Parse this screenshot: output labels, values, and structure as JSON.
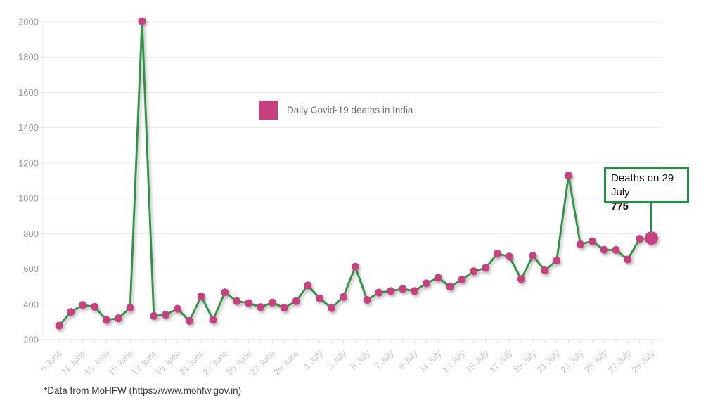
{
  "page": {
    "background_color": "#ffffff"
  },
  "legend": {
    "label": "Daily Covid-19 deaths in India",
    "swatch_color": "#c8417e"
  },
  "annotation": {
    "line1": "Deaths on 29 July",
    "line2": "775"
  },
  "footer": {
    "text": "*Data from MoHFW (https://www.mohfw.gov.in)"
  },
  "chart_data": {
    "type": "line",
    "title": "",
    "xlabel": "",
    "ylabel": "",
    "x": [
      "9 June",
      "10 June",
      "11 June",
      "12 June",
      "13 June",
      "14 June",
      "15 June",
      "16 June",
      "17 June",
      "18 June",
      "19 June",
      "20 June",
      "21 June",
      "22 June",
      "23 June",
      "24 June",
      "25 June",
      "26 June",
      "27 June",
      "28 June",
      "29 June",
      "30 June",
      "1 July",
      "2 July",
      "3 July",
      "4 July",
      "5 July",
      "6 July",
      "7 July",
      "8 July",
      "9 July",
      "10 July",
      "11 July",
      "12 July",
      "13 July",
      "14 July",
      "15 July",
      "16 July",
      "17 July",
      "18 July",
      "19 July",
      "20 July",
      "21 July",
      "22 July",
      "23 July",
      "24 July",
      "25 July",
      "26 July",
      "27 July",
      "28 July",
      "29 July"
    ],
    "series": [
      {
        "name": "Daily Covid-19 deaths in India",
        "values": [
          279,
          357,
          396,
          386,
          311,
          321,
          380,
          2003,
          334,
          341,
          375,
          306,
          445,
          312,
          468,
          418,
          407,
          384,
          410,
          380,
          418,
          507,
          434,
          379,
          442,
          613,
          425,
          467,
          475,
          487,
          475,
          519,
          551,
          500,
          540,
          587,
          606,
          687,
          671,
          543,
          675,
          592,
          648,
          1129,
          740,
          757,
          709,
          708,
          654,
          771,
          775
        ]
      }
    ],
    "x_tick_labels": [
      "9 June",
      "11 June",
      "13 June",
      "15 June",
      "17 June",
      "19 June",
      "21 June",
      "23 June",
      "25 June",
      "27 June",
      "29 June",
      "1 July",
      "3 July",
      "5 July",
      "7 July",
      "9 July",
      "11 July",
      "13 July",
      "15 July",
      "17 July",
      "19 July",
      "21 July",
      "23 July",
      "25 July",
      "27 July",
      "29 July"
    ],
    "x_tick_step": 2,
    "y_ticks": [
      200,
      400,
      600,
      800,
      1000,
      1200,
      1400,
      1600,
      1800,
      2000
    ],
    "ylim": [
      200,
      2000
    ],
    "grid": "horizontal",
    "legend_position": "top-center",
    "line_color": "#2f9143",
    "marker_color": "#c8417e",
    "grid_color": "#ececec",
    "axis_tick_color": "#e0e0e0",
    "y_label_color": "#9a9a9a",
    "x_label_color": "#c8c8c8",
    "highlight_last_point": true,
    "annotation": {
      "target_x": "29 July",
      "target_value": 775,
      "text": "Deaths on 29 July",
      "value_label": "775",
      "box_border_color": "#1f9143"
    }
  }
}
